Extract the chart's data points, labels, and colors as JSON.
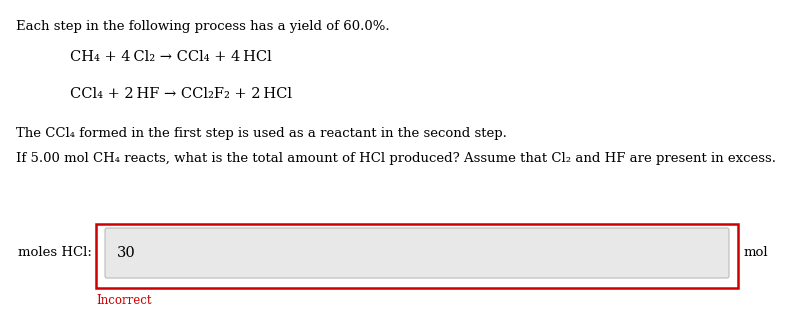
{
  "title_text": "Each step in the following process has a yield of 60.0%.",
  "eq1": "CH₄ + 4 Cl₂ → CCl₄ + 4 HCl",
  "eq2": "CCl₄ + 2 HF → CCl₂F₂ + 2 HCl",
  "line3": "The CCl₄ formed in the first step is used as a reactant in the second step.",
  "line4": "If 5.00 mol CH₄ reacts, what is the total amount of HCl produced? Assume that Cl₂ and HF are present in excess.",
  "label_left": "moles HCl:",
  "label_right": "mol",
  "input_value": "30",
  "incorrect_text": "Incorrect",
  "incorrect_color": "#cc0000",
  "box_border_color": "#cc0000",
  "input_bg_color": "#e8e8e8",
  "bg_color": "#ffffff",
  "main_fontsize": 9.5,
  "eq_fontsize": 10.5,
  "small_fontsize": 8.5
}
